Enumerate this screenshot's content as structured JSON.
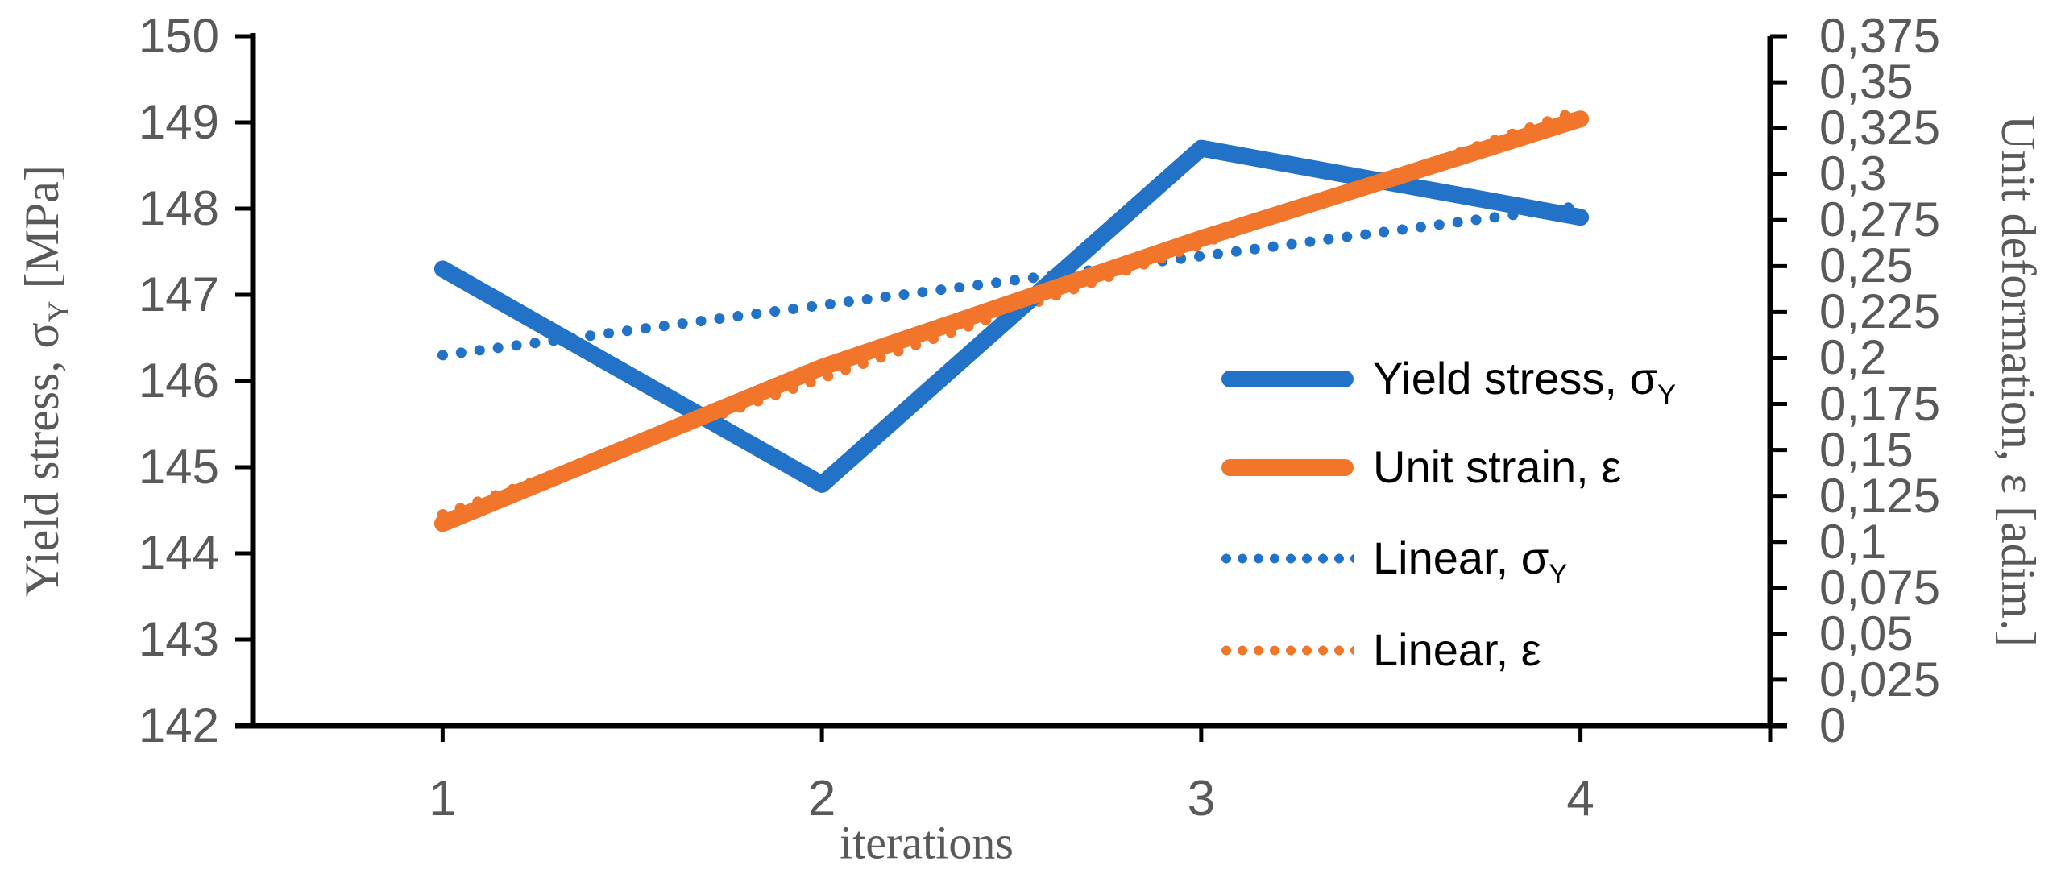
{
  "palette": {
    "blue": "#2272C8",
    "orange": "#F1752B",
    "axis_text": "#595959",
    "axis_line": "#000000",
    "legend_text": "#000000",
    "background": "#FFFFFF"
  },
  "chart_data": {
    "type": "line",
    "x": [
      1,
      2,
      3,
      4
    ],
    "x_tick_labels": [
      "1",
      "2",
      "3",
      "4"
    ],
    "xlabel": "iterations",
    "left_axis": {
      "title": "Yield stress, σY [MPa]",
      "title_parts": [
        {
          "t": "Yield stress, σ"
        },
        {
          "t": "Y",
          "sub": true
        },
        {
          "t": " [MPa]"
        }
      ],
      "min": 142,
      "max": 150,
      "major_unit": 1,
      "tick_labels": [
        "150",
        "149",
        "148",
        "147",
        "146",
        "145",
        "144",
        "143",
        "142"
      ]
    },
    "right_axis": {
      "title": "Unit deformation, ε [adim.]",
      "title_parts": [
        {
          "t": "Unit deformation, ε [adim.]"
        }
      ],
      "min": 0,
      "max": 0.375,
      "major_unit": 0.025,
      "tick_labels": [
        "0,375",
        "0,35",
        "0,325",
        "0,3",
        "0,275",
        "0,25",
        "0,225",
        "0,2",
        "0,175",
        "0,15",
        "0,125",
        "0,1",
        "0,075",
        "0,05",
        "0,025",
        "0"
      ]
    },
    "series": [
      {
        "name": "Linear, σY",
        "label_parts": [
          {
            "t": "Linear, σ"
          },
          {
            "t": "Y",
            "sub": true
          }
        ],
        "axis": "left",
        "style": "dotted",
        "color_key": "blue",
        "trendline": true,
        "values": [
          146.3,
          146.88,
          147.45,
          148.03
        ]
      },
      {
        "name": "Linear, ε",
        "label_parts": [
          {
            "t": "Linear, ε"
          }
        ],
        "axis": "right",
        "style": "dotted",
        "color_key": "orange",
        "trendline": true,
        "values": [
          0.115,
          0.189,
          0.262,
          0.335
        ]
      },
      {
        "name": "Yield stress, σY",
        "label_parts": [
          {
            "t": "Yield stress, σ"
          },
          {
            "t": "Y",
            "sub": true
          }
        ],
        "axis": "left",
        "style": "solid",
        "color_key": "blue",
        "trendline": false,
        "values": [
          147.3,
          144.8,
          148.7,
          147.9
        ]
      },
      {
        "name": "Unit strain, ε",
        "label_parts": [
          {
            "t": "Unit strain, ε"
          }
        ],
        "axis": "right",
        "style": "solid",
        "color_key": "orange",
        "trendline": false,
        "values": [
          0.11,
          0.195,
          0.265,
          0.33
        ]
      }
    ],
    "legend": {
      "position": "inside-right",
      "order": [
        "Yield stress, σY",
        "Unit strain, ε",
        "Linear, σY",
        "Linear, ε"
      ]
    },
    "grid": false
  }
}
